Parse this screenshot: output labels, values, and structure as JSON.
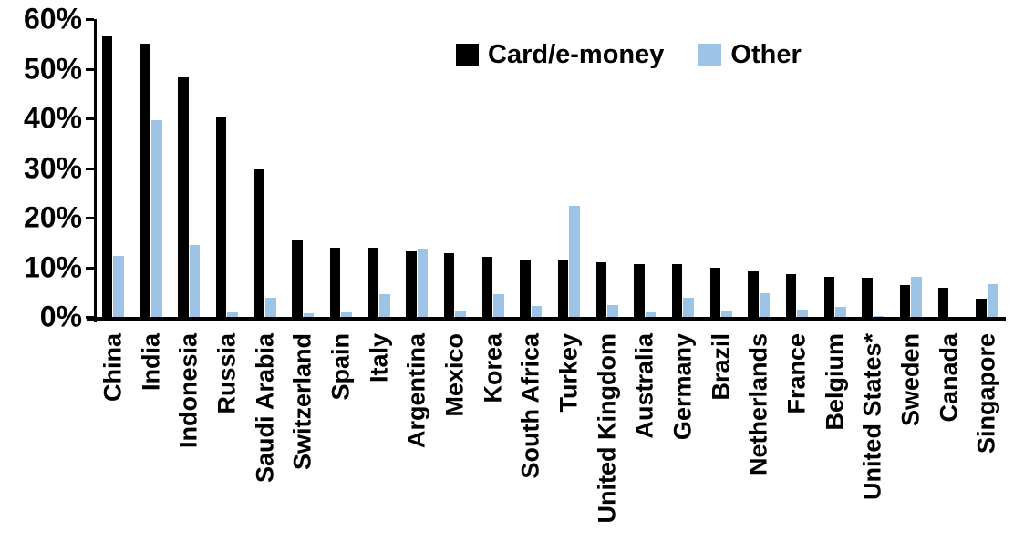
{
  "chart_data": {
    "type": "bar",
    "title": "",
    "xlabel": "",
    "ylabel": "",
    "ylim": [
      0,
      60
    ],
    "ytick_step": 10,
    "ytick_labels": [
      "0%",
      "10%",
      "20%",
      "30%",
      "40%",
      "50%",
      "60%"
    ],
    "grid": false,
    "legend_position": "top-center",
    "categories": [
      "China",
      "India",
      "Indonesia",
      "Russia",
      "Saudi Arabia",
      "Switzerland",
      "Spain",
      "Italy",
      "Argentina",
      "Mexico",
      "Korea",
      "South Africa",
      "Turkey",
      "United Kingdom",
      "Australia",
      "Germany",
      "Brazil",
      "Netherlands",
      "France",
      "Belgium",
      "United States*",
      "Sweden",
      "Canada",
      "Singapore"
    ],
    "series": [
      {
        "name": "Card/e-money",
        "color": "#000000",
        "values": [
          56.5,
          55.0,
          48.2,
          40.4,
          29.8,
          15.5,
          14.0,
          14.0,
          13.2,
          12.8,
          12.1,
          11.6,
          11.5,
          11.0,
          10.7,
          10.6,
          9.9,
          9.2,
          8.6,
          8.1,
          7.8,
          6.4,
          5.8,
          3.7
        ]
      },
      {
        "name": "Other",
        "color": "#9DC3E6",
        "values": [
          12.3,
          39.7,
          14.5,
          1.0,
          3.9,
          0.7,
          0.9,
          4.5,
          13.8,
          1.3,
          4.5,
          2.2,
          22.4,
          2.3,
          0.9,
          3.9,
          1.1,
          4.8,
          1.5,
          2.0,
          0.2,
          8.1,
          0.0,
          6.6
        ]
      }
    ]
  },
  "legend": {
    "items": [
      {
        "label": "Card/e-money",
        "color": "#000000"
      },
      {
        "label": "Other",
        "color": "#9DC3E6"
      }
    ]
  }
}
